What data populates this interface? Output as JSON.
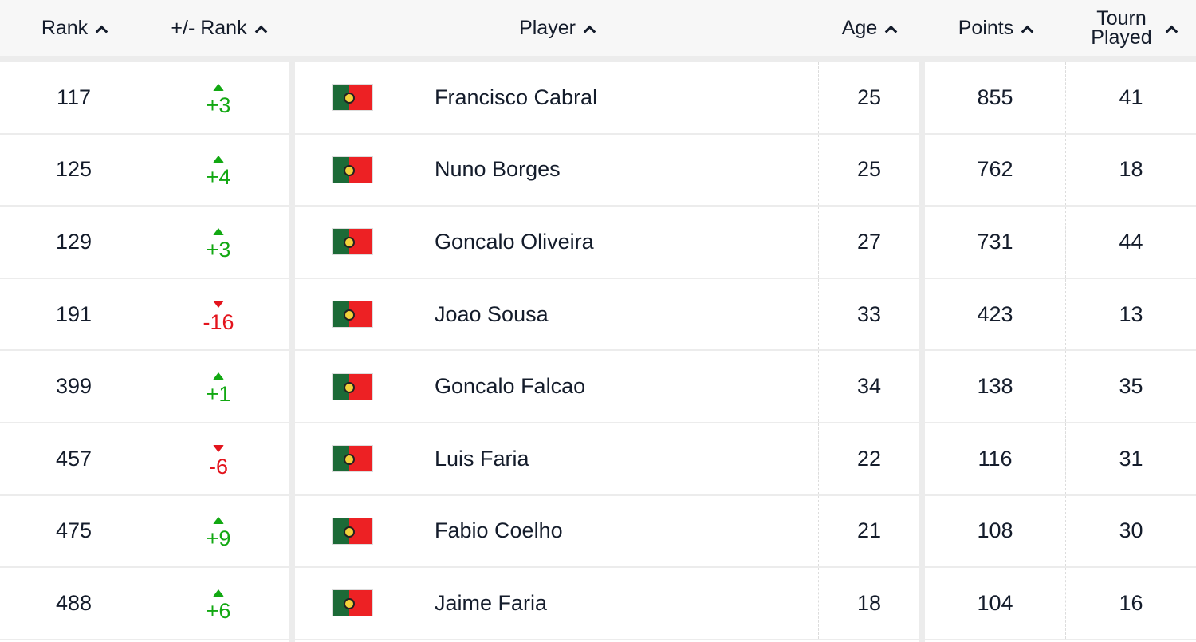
{
  "header": {
    "rank": "Rank",
    "change": "+/- Rank",
    "player": "Player",
    "age": "Age",
    "points": "Points",
    "tourn": "Tourn Played"
  },
  "colors": {
    "up": "#12a812",
    "down": "#e3141d"
  },
  "rows": [
    {
      "rank": "117",
      "dir": "up",
      "change": "+3",
      "flag": "portugal-flag",
      "player": "Francisco Cabral",
      "age": "25",
      "points": "855",
      "tourn": "41"
    },
    {
      "rank": "125",
      "dir": "up",
      "change": "+4",
      "flag": "portugal-flag",
      "player": "Nuno Borges",
      "age": "25",
      "points": "762",
      "tourn": "18"
    },
    {
      "rank": "129",
      "dir": "up",
      "change": "+3",
      "flag": "portugal-flag",
      "player": "Goncalo Oliveira",
      "age": "27",
      "points": "731",
      "tourn": "44"
    },
    {
      "rank": "191",
      "dir": "down",
      "change": "-16",
      "flag": "portugal-flag",
      "player": "Joao Sousa",
      "age": "33",
      "points": "423",
      "tourn": "13"
    },
    {
      "rank": "399",
      "dir": "up",
      "change": "+1",
      "flag": "portugal-flag",
      "player": "Goncalo Falcao",
      "age": "34",
      "points": "138",
      "tourn": "35"
    },
    {
      "rank": "457",
      "dir": "down",
      "change": "-6",
      "flag": "portugal-flag",
      "player": "Luis Faria",
      "age": "22",
      "points": "116",
      "tourn": "31"
    },
    {
      "rank": "475",
      "dir": "up",
      "change": "+9",
      "flag": "portugal-flag",
      "player": "Fabio Coelho",
      "age": "21",
      "points": "108",
      "tourn": "30"
    },
    {
      "rank": "488",
      "dir": "up",
      "change": "+6",
      "flag": "portugal-flag",
      "player": "Jaime Faria",
      "age": "18",
      "points": "104",
      "tourn": "16"
    }
  ]
}
